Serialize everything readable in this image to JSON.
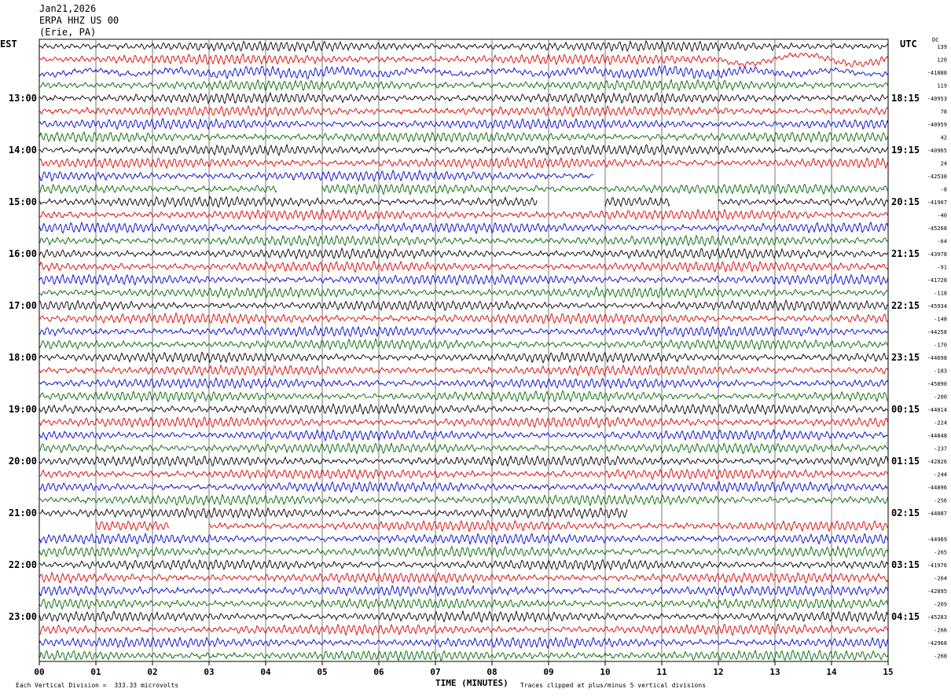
{
  "header": {
    "date": "Jan21,2026",
    "station": "ERPA HHZ US 00",
    "location": "(Erie, PA)"
  },
  "corner": {
    "left_tz": "EST",
    "right_tz": "UTC",
    "dc_label": "DC"
  },
  "footer": {
    "scale": "Each Vertical Division =  333.33 microvolts",
    "clip": "Traces clipped at plus/minus 5 vertical divisions",
    "xlabel": "TIME (MINUTES)"
  },
  "colors": {
    "black": "#000000",
    "red": "#dd0000",
    "blue": "#0000cc",
    "green": "#006600",
    "grid": "#555555"
  },
  "chart_data": {
    "type": "line",
    "title": "",
    "xlabel": "TIME (MINUTES)",
    "xlim": [
      0,
      15
    ],
    "x_ticks": [
      "00",
      "01",
      "02",
      "03",
      "04",
      "05",
      "06",
      "07",
      "08",
      "09",
      "10",
      "11",
      "12",
      "13",
      "14",
      "15"
    ],
    "rows_per_hour": 4,
    "row_colors": [
      "black",
      "red",
      "blue",
      "green"
    ],
    "left_hour_labels": [
      "13:00",
      "14:00",
      "15:00",
      "16:00",
      "17:00",
      "18:00",
      "19:00",
      "20:00",
      "21:00",
      "22:00",
      "23:00"
    ],
    "right_hour_labels": [
      "18:15",
      "19:15",
      "20:15",
      "21:15",
      "22:15",
      "23:15",
      "00:15",
      "01:15",
      "02:15",
      "03:15",
      "04:15"
    ],
    "dc_offsets": [
      "139",
      "120",
      "-41888",
      "119",
      "-40953",
      "78",
      "-40959",
      "42",
      "-40965",
      "24",
      "-42538",
      "-8",
      "-41907",
      "-40",
      "-45268",
      "-64",
      "-43978",
      "-91",
      "-41728",
      "-118",
      "-45934",
      "-148",
      "-44258",
      "-170",
      "-44698",
      "-183",
      "-45890",
      "-200",
      "-44814",
      "-224",
      "-44848",
      "-237",
      "-42826",
      "-244",
      "-44896",
      "-256",
      "-44087",
      "",
      "-44969",
      "-265",
      "-41976",
      "-264",
      "-42895",
      "-269",
      "-45283",
      "-266",
      "-42968",
      "-268"
    ],
    "gaps": [
      {
        "row": 10,
        "from": 9.8,
        "to": 15
      },
      {
        "row": 11,
        "from": 4.2,
        "to": 5.0
      },
      {
        "row": 12,
        "from": 8.8,
        "to": 10.0
      },
      {
        "row": 12,
        "from": 11.15,
        "to": 12.0
      },
      {
        "row": 36,
        "from": 10.4,
        "to": 15
      },
      {
        "row": 37,
        "from": 0.0,
        "to": 1.0
      },
      {
        "row": 37,
        "from": 2.3,
        "to": 3.0
      }
    ]
  }
}
